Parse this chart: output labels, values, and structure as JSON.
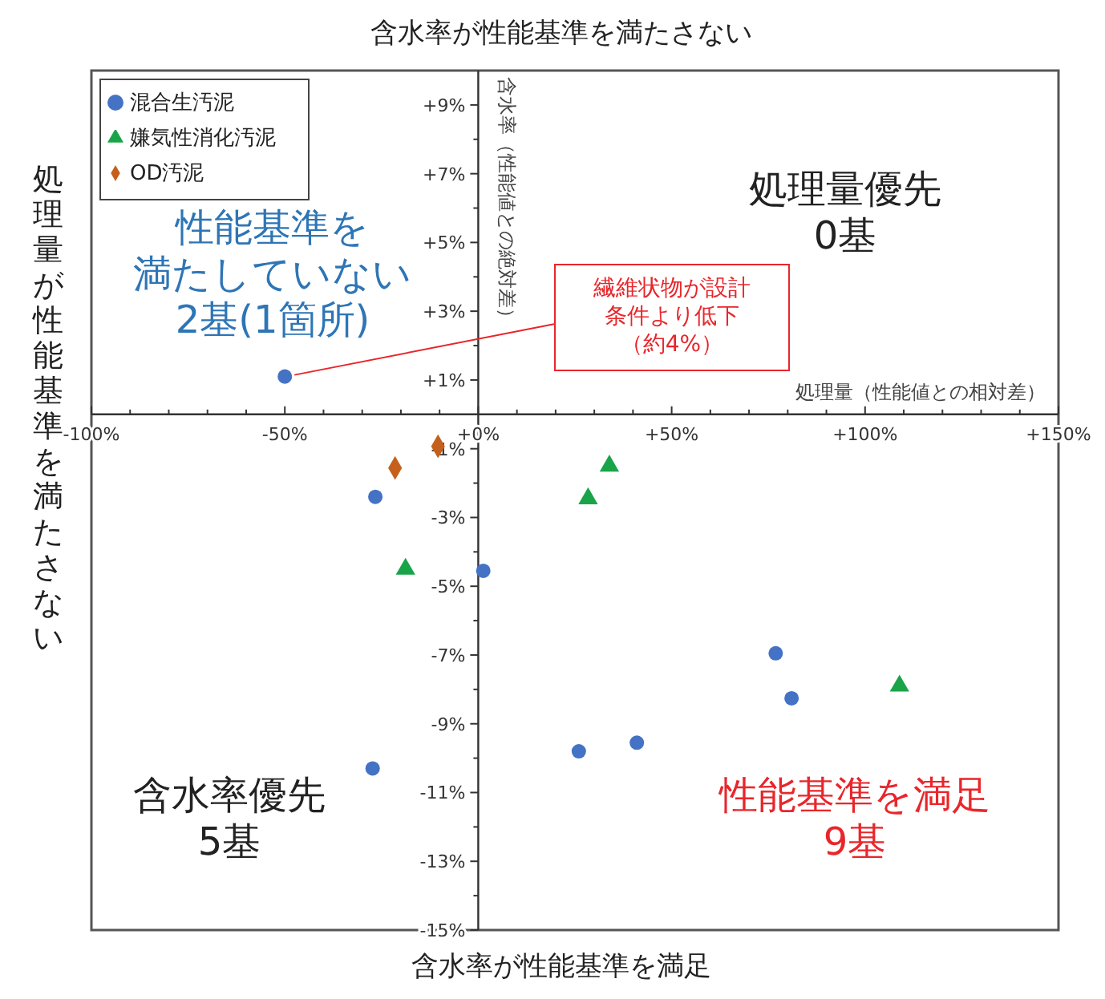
{
  "chart_data": {
    "type": "scatter",
    "title": "含水率が性能基準を満たさない",
    "xlabel": "処理量（性能値との相対差）",
    "ylabel": "含水率（性能値との絶対差）",
    "xlim": [
      -100,
      150
    ],
    "ylim": [
      -15,
      10
    ],
    "xticks": [
      {
        "value": -100,
        "label": "-100%"
      },
      {
        "value": -90,
        "label": null
      },
      {
        "value": -80,
        "label": null
      },
      {
        "value": -70,
        "label": null
      },
      {
        "value": -60,
        "label": null
      },
      {
        "value": -50,
        "label": "-50%"
      },
      {
        "value": -40,
        "label": null
      },
      {
        "value": -30,
        "label": null
      },
      {
        "value": -20,
        "label": null
      },
      {
        "value": -10,
        "label": null
      },
      {
        "value": 0,
        "label": "+0%"
      },
      {
        "value": 10,
        "label": null
      },
      {
        "value": 20,
        "label": null
      },
      {
        "value": 30,
        "label": null
      },
      {
        "value": 40,
        "label": null
      },
      {
        "value": 50,
        "label": "+50%"
      },
      {
        "value": 60,
        "label": null
      },
      {
        "value": 70,
        "label": null
      },
      {
        "value": 80,
        "label": null
      },
      {
        "value": 90,
        "label": null
      },
      {
        "value": 100,
        "label": "+100%"
      },
      {
        "value": 110,
        "label": null
      },
      {
        "value": 120,
        "label": null
      },
      {
        "value": 130,
        "label": null
      },
      {
        "value": 140,
        "label": null
      },
      {
        "value": 150,
        "label": "+150%"
      }
    ],
    "yticks": [
      {
        "value": -15,
        "label": "-15%"
      },
      {
        "value": -14,
        "label": null
      },
      {
        "value": -13,
        "label": "-13%"
      },
      {
        "value": -12,
        "label": null
      },
      {
        "value": -11,
        "label": "-11%"
      },
      {
        "value": -10,
        "label": null
      },
      {
        "value": -9,
        "label": "-9%"
      },
      {
        "value": -8,
        "label": null
      },
      {
        "value": -7,
        "label": "-7%"
      },
      {
        "value": -6,
        "label": null
      },
      {
        "value": -5,
        "label": "-5%"
      },
      {
        "value": -4,
        "label": null
      },
      {
        "value": -3,
        "label": "-3%"
      },
      {
        "value": -2,
        "label": null
      },
      {
        "value": -1,
        "label": "-1%"
      },
      {
        "value": 1,
        "label": "+1%"
      },
      {
        "value": 2,
        "label": null
      },
      {
        "value": 3,
        "label": "+3%"
      },
      {
        "value": 4,
        "label": null
      },
      {
        "value": 5,
        "label": "+5%"
      },
      {
        "value": 6,
        "label": null
      },
      {
        "value": 7,
        "label": "+7%"
      },
      {
        "value": 8,
        "label": null
      },
      {
        "value": 9,
        "label": "+9%"
      }
    ],
    "legend": "top left",
    "series": [
      {
        "name": "混合生汚泥",
        "color": "#4472c4",
        "marker": "circle",
        "x": [
          -50,
          -26.6,
          1.3,
          -27.3,
          26,
          41,
          76.9,
          81
        ],
        "values": [
          1.1,
          -2.4,
          -4.55,
          -10.3,
          -9.8,
          -9.55,
          -6.95,
          -8.26
        ]
      },
      {
        "name": "嫌気性消化汚泥",
        "color": "#1aa44a",
        "marker": "triangle",
        "x": [
          33.9,
          28.4,
          -18.8,
          108.9
        ],
        "values": [
          -1.5,
          -2.45,
          -4.5,
          -7.9
        ]
      },
      {
        "name": "OD汚泥",
        "color": "#c5601c",
        "marker": "diamond",
        "x": [
          -21.5,
          -10.4
        ],
        "values": [
          -1.56,
          -0.93
        ]
      }
    ],
    "annotations": [
      "処理量優先0基",
      "性能基準を満たしていない2基(1箇所)",
      "含水率優先5基",
      "性能基準を満足9基",
      "含水率が性能基準を満足",
      "処理量が性能基準を満たさない",
      "繊維状物が設計条件より低下（約4%）"
    ]
  }
}
